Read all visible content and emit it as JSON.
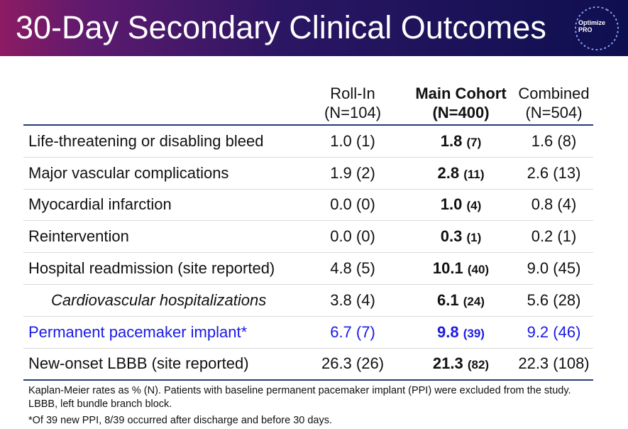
{
  "header": {
    "title": "30-Day Secondary Clinical Outcomes",
    "logo_line1": "Optimize",
    "logo_line2": "PRO"
  },
  "colors": {
    "header_gradient": [
      "#8c1b63",
      "#2b1663",
      "#0e0f50"
    ],
    "highlight_row": "#1a1ae6",
    "rule": "#1f3c7a"
  },
  "table": {
    "columns": [
      {
        "name": "Roll-In",
        "n": "(N=104)"
      },
      {
        "name": "Main Cohort",
        "n": "(N=400)"
      },
      {
        "name": "Combined",
        "n": "(N=504)"
      }
    ],
    "rows": [
      {
        "label": "Life-threatening or disabling bleed",
        "rollin": "1.0 (1)",
        "main_val": "1.8",
        "main_n": "(7)",
        "combined": "1.6 (8)"
      },
      {
        "label": "Major vascular complications",
        "rollin": "1.9 (2)",
        "main_val": "2.8",
        "main_n": "(11)",
        "combined": "2.6 (13)"
      },
      {
        "label": "Myocardial infarction",
        "rollin": "0.0 (0)",
        "main_val": "1.0",
        "main_n": "(4)",
        "combined": "0.8 (4)"
      },
      {
        "label": "Reintervention",
        "rollin": "0.0 (0)",
        "main_val": "0.3",
        "main_n": "(1)",
        "combined": "0.2 (1)"
      },
      {
        "label": "Hospital readmission (site reported)",
        "rollin": "4.8 (5)",
        "main_val": "10.1",
        "main_n": "(40)",
        "combined": "9.0 (45)"
      },
      {
        "label": "Cardiovascular hospitalizations",
        "rollin": "3.8 (4)",
        "main_val": "6.1",
        "main_n": "(24)",
        "combined": "5.6 (28)"
      },
      {
        "label": "Permanent pacemaker implant*",
        "rollin": "6.7 (7)",
        "main_val": "9.8",
        "main_n": "(39)",
        "combined": "9.2 (46)"
      },
      {
        "label": "New-onset LBBB (site reported)",
        "rollin": "26.3 (26)",
        "main_val": "21.3",
        "main_n": "(82)",
        "combined": "22.3 (108)"
      }
    ]
  },
  "footnotes": {
    "line1": "Kaplan-Meier rates as % (N). Patients with baseline permanent pacemaker implant (PPI) were excluded from the study.",
    "line2": "LBBB, left bundle branch block.",
    "line3": "*Of 39 new PPI, 8/39 occurred after discharge and before 30 days."
  }
}
